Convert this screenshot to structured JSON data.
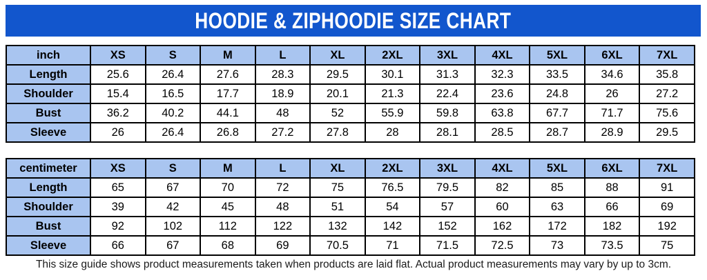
{
  "page": {
    "title": "HOODIE & ZIPHOODIE SIZE CHART",
    "footnote": "This size guide shows product measurements taken when products are laid flat. Actual product measurements may vary by up to 3cm."
  },
  "colors": {
    "banner_bg": "#1256cd",
    "banner_text": "#ffffff",
    "header_cell_bg": "#a9c5f0",
    "cell_bg": "#ffffff",
    "border": "#000000",
    "text": "#000000"
  },
  "sizes": [
    "XS",
    "S",
    "M",
    "L",
    "XL",
    "2XL",
    "3XL",
    "4XL",
    "5XL",
    "6XL",
    "7XL"
  ],
  "tables": [
    {
      "unit": "inch",
      "rows": [
        {
          "label": "Length",
          "values": [
            "25.6",
            "26.4",
            "27.6",
            "28.3",
            "29.5",
            "30.1",
            "31.3",
            "32.3",
            "33.5",
            "34.6",
            "35.8"
          ]
        },
        {
          "label": "Shoulder",
          "values": [
            "15.4",
            "16.5",
            "17.7",
            "18.9",
            "20.1",
            "21.3",
            "22.4",
            "23.6",
            "24.8",
            "26",
            "27.2"
          ]
        },
        {
          "label": "Bust",
          "values": [
            "36.2",
            "40.2",
            "44.1",
            "48",
            "52",
            "55.9",
            "59.8",
            "63.8",
            "67.7",
            "71.7",
            "75.6"
          ]
        },
        {
          "label": "Sleeve",
          "values": [
            "26",
            "26.4",
            "26.8",
            "27.2",
            "27.8",
            "28",
            "28.1",
            "28.5",
            "28.7",
            "28.9",
            "29.5"
          ]
        }
      ]
    },
    {
      "unit": "centimeter",
      "rows": [
        {
          "label": "Length",
          "values": [
            "65",
            "67",
            "70",
            "72",
            "75",
            "76.5",
            "79.5",
            "82",
            "85",
            "88",
            "91"
          ]
        },
        {
          "label": "Shoulder",
          "values": [
            "39",
            "42",
            "45",
            "48",
            "51",
            "54",
            "57",
            "60",
            "63",
            "66",
            "69"
          ]
        },
        {
          "label": "Bust",
          "values": [
            "92",
            "102",
            "112",
            "122",
            "132",
            "142",
            "152",
            "162",
            "172",
            "182",
            "192"
          ]
        },
        {
          "label": "Sleeve",
          "values": [
            "66",
            "67",
            "68",
            "69",
            "70.5",
            "71",
            "71.5",
            "72.5",
            "73",
            "73.5",
            "75"
          ]
        }
      ]
    }
  ]
}
